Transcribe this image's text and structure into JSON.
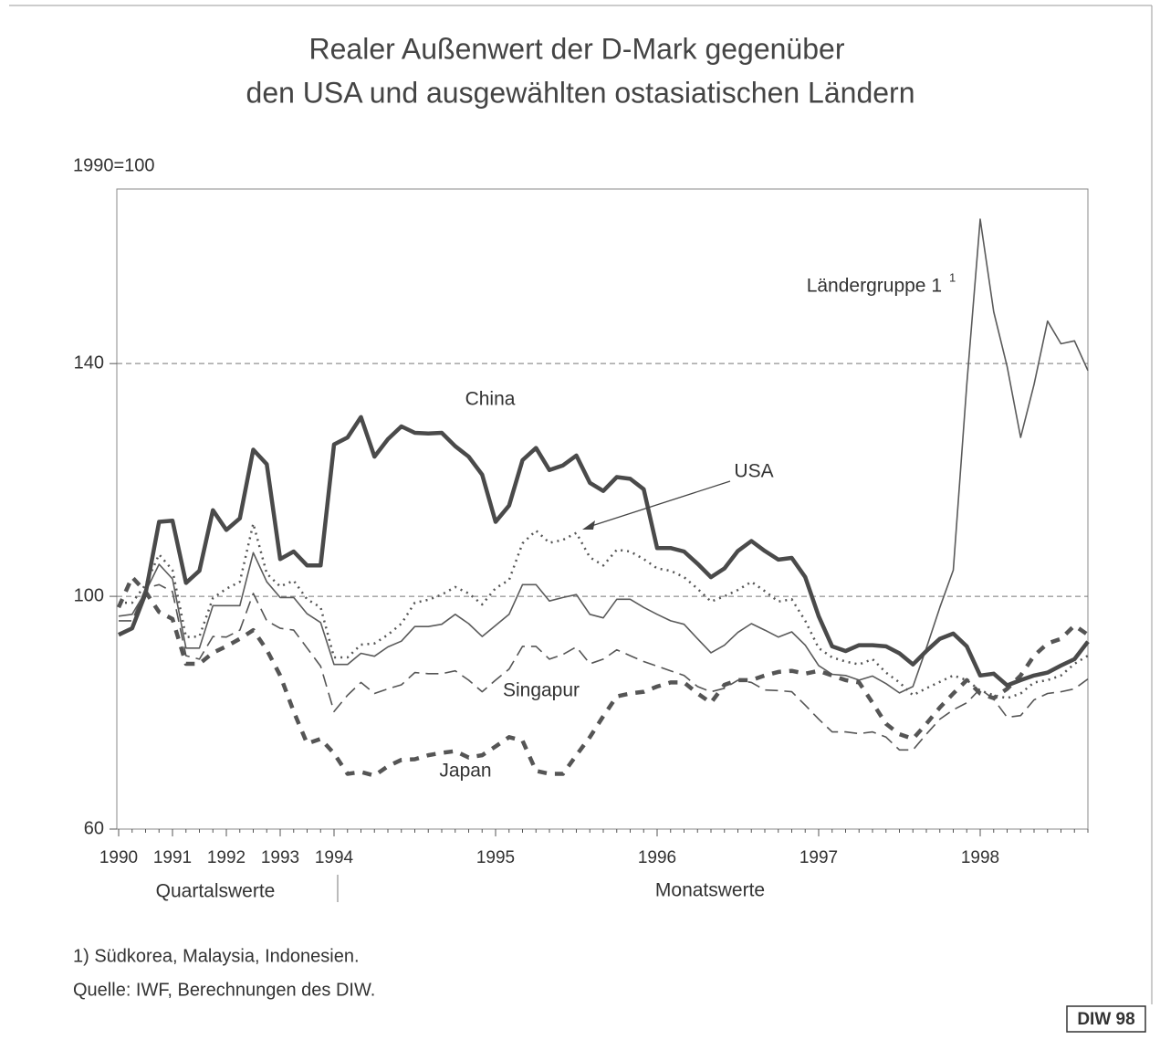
{
  "chart_data": {
    "type": "line",
    "title": "Realer Außenwert der D-Mark gegenüber",
    "subtitle": "den USA und ausgewählten ostasiatischen Ländern",
    "y_label": "1990=100",
    "period_labels": [
      "Quartalswerte",
      "Monatswerte"
    ],
    "footnote": "1) Südkorea, Malaysia, Indonesien.",
    "source": "Quelle: IWF, Berechnungen des DIW.",
    "badge": "DIW 98",
    "footnote_marker": "1",
    "annotation_arrow": "USA",
    "categories": [
      "1990",
      null,
      null,
      null,
      "1991",
      null,
      null,
      null,
      "1992",
      null,
      null,
      null,
      "1993",
      null,
      null,
      null,
      "1994",
      null,
      null,
      null,
      null,
      null,
      null,
      null,
      null,
      null,
      null,
      null,
      "1995",
      null,
      null,
      null,
      null,
      null,
      null,
      null,
      null,
      null,
      null,
      null,
      "1996",
      null,
      null,
      null,
      null,
      null,
      null,
      null,
      null,
      null,
      null,
      null,
      "1997",
      null,
      null,
      null,
      null,
      null,
      null,
      null,
      null,
      null,
      null,
      null,
      "1998",
      null,
      null,
      null,
      null,
      null,
      null,
      null,
      null
    ],
    "ylim": [
      60,
      170
    ],
    "yticks": [
      60,
      100,
      140
    ],
    "grid": true,
    "series": [
      {
        "name": "China",
        "color": "#4a4a4a",
        "line_style": "thick-solid",
        "values": [
          93.4,
          94.5,
          100.5,
          112.8,
          113,
          102.3,
          104.4,
          114.8,
          111.4,
          113.4,
          125.2,
          122.7,
          106.4,
          107.7,
          105.3,
          105.3,
          126.1,
          127.3,
          130.8,
          124,
          127,
          129.2,
          128.1,
          128,
          128.1,
          125.8,
          124,
          120.9,
          112.8,
          115.6,
          123.4,
          125.5,
          121.7,
          122.5,
          124.2,
          119.5,
          118.1,
          120.5,
          120.2,
          118.4,
          108.3,
          108.3,
          107.7,
          105.6,
          103.3,
          104.8,
          107.8,
          109.5,
          107.8,
          106.3,
          106.6,
          103.3,
          96.6,
          91.4,
          90.6,
          91.6,
          91.6,
          91.4,
          90.2,
          88.3,
          90.6,
          92.7,
          93.6,
          91.4,
          86.4,
          86.7,
          84.7,
          85.6,
          86.4,
          86.9,
          88.1,
          89.2,
          92.2
        ]
      },
      {
        "name": "Ländergruppe 1",
        "color": "#5a5a5a",
        "line_style": "thin-solid",
        "values": [
          96.6,
          96.9,
          100.8,
          105.5,
          103,
          91.1,
          91.1,
          98.4,
          98.4,
          98.4,
          107.5,
          102.5,
          99.8,
          99.8,
          97,
          95.5,
          88.3,
          88.3,
          90.2,
          89.7,
          91.3,
          92.3,
          94.8,
          94.8,
          95.2,
          96.9,
          95.3,
          93.1,
          95,
          96.9,
          102,
          102,
          99.2,
          99.8,
          100.3,
          96.9,
          96.3,
          99.5,
          99.5,
          98.1,
          96.9,
          95.8,
          95.2,
          92.7,
          90.3,
          91.6,
          93.8,
          95.3,
          94.2,
          93,
          93.9,
          91.6,
          88.1,
          86.6,
          86.4,
          85.6,
          86.3,
          85,
          83.4,
          84.5,
          91.1,
          98.1,
          104.5,
          136.4,
          164.8,
          148.9,
          139.5,
          127.3,
          136.4,
          147.3,
          143.4,
          143.9,
          138.8
        ]
      },
      {
        "name": "USA",
        "color": "#555555",
        "line_style": "dotted",
        "values": [
          98.9,
          98.9,
          102,
          107.2,
          104.5,
          93,
          93.1,
          99.7,
          101.3,
          102.5,
          112.5,
          103.9,
          101.7,
          102.7,
          99.5,
          98.1,
          89.5,
          89.5,
          91.7,
          91.9,
          93.4,
          95.3,
          98.9,
          99.4,
          100.3,
          101.6,
          100.5,
          98.6,
          101.4,
          102.8,
          109.1,
          111.3,
          109.2,
          109.7,
          110.9,
          106.7,
          105.3,
          108,
          107.7,
          106.4,
          104.8,
          104.4,
          103.3,
          101.3,
          99.1,
          100,
          101.1,
          102.5,
          100.9,
          99.1,
          99.5,
          95.8,
          91.1,
          89.5,
          88.8,
          88.3,
          89.2,
          86.9,
          85.2,
          83,
          84.2,
          85.3,
          86.4,
          85.6,
          83.8,
          83,
          82.5,
          83.3,
          85.2,
          85.6,
          86.4,
          88.4,
          89.8
        ]
      },
      {
        "name": "Singapur",
        "color": "#555555",
        "line_style": "thin-dashed",
        "values": [
          95.8,
          95.8,
          101.4,
          102,
          100.8,
          89.8,
          89.2,
          93.1,
          93,
          94.2,
          100.5,
          95.8,
          94.5,
          94.2,
          91.1,
          88,
          80.2,
          83,
          85.2,
          83.3,
          84.1,
          84.8,
          86.9,
          86.7,
          86.7,
          87.2,
          85.6,
          83.6,
          85.6,
          87.5,
          91.4,
          91.4,
          89.2,
          90,
          91.3,
          88.4,
          89.2,
          90.8,
          89.8,
          88.8,
          88,
          87.2,
          86.4,
          84.5,
          83.6,
          84.2,
          85.6,
          85.2,
          83.9,
          83.8,
          83.6,
          81.3,
          78.9,
          76.7,
          76.7,
          76.4,
          76.7,
          75.8,
          73.6,
          73.6,
          76.3,
          78.9,
          80.5,
          81.7,
          84.1,
          82.3,
          79.2,
          79.5,
          82.2,
          83.3,
          83.6,
          84.1,
          85.8
        ]
      },
      {
        "name": "Japan",
        "color": "#555555",
        "line_style": "thick-dashed",
        "values": [
          98.1,
          103.3,
          100.8,
          97.3,
          96.1,
          88.4,
          88.4,
          90.3,
          91.4,
          92.7,
          94.2,
          90.8,
          86.4,
          80.2,
          74.7,
          75.5,
          73,
          69.5,
          69.8,
          69.2,
          70.8,
          71.9,
          72,
          72.7,
          73.1,
          73.4,
          72.3,
          72.7,
          74.2,
          75.8,
          75.2,
          70,
          69.5,
          69.5,
          72.7,
          75.8,
          79.4,
          82.8,
          83.3,
          83.6,
          84.5,
          85.2,
          85.2,
          83.3,
          81.7,
          84.8,
          85.6,
          85.6,
          86.4,
          87,
          87.2,
          86.7,
          87.2,
          86.4,
          85.6,
          85.2,
          81.7,
          78.1,
          76.3,
          75.5,
          78.1,
          80.9,
          83.3,
          85.6,
          83.3,
          82.5,
          84.1,
          86.4,
          89.8,
          91.9,
          92.7,
          95,
          93.4
        ]
      }
    ]
  }
}
